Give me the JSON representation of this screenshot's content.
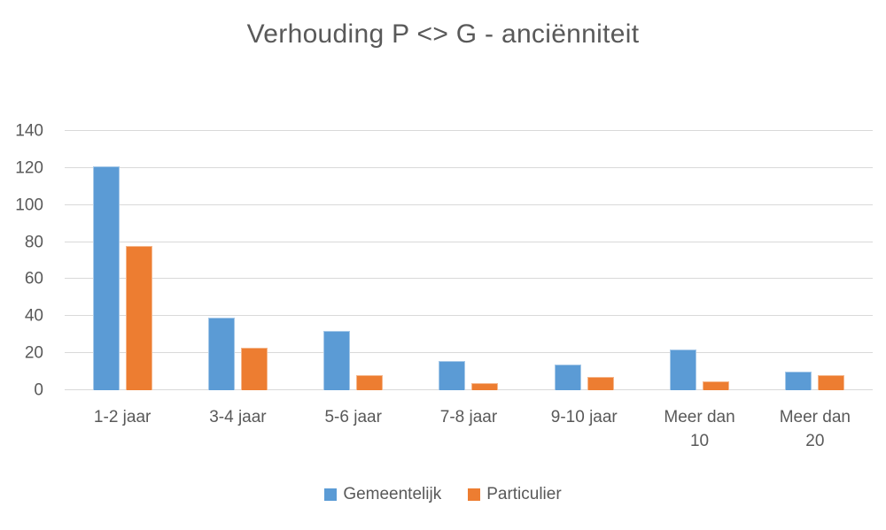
{
  "chart_data": {
    "type": "bar",
    "title": "Verhouding P <> G - anciënniteit",
    "categories": [
      "1-2 jaar",
      "3-4 jaar",
      "5-6 jaar",
      "7-8 jaar",
      "9-10 jaar",
      "Meer dan 10",
      "Meer dan 20"
    ],
    "series": [
      {
        "name": "Gemeentelijk",
        "color": "#5B9BD5",
        "values": [
          121,
          39,
          32,
          16,
          14,
          22,
          10
        ]
      },
      {
        "name": "Particulier",
        "color": "#ED7D31",
        "values": [
          78,
          23,
          8,
          4,
          7,
          5,
          8
        ]
      }
    ],
    "xlabel": "",
    "ylabel": "",
    "ylim": [
      0,
      140
    ],
    "ytick_step": 20,
    "yticks": [
      0,
      20,
      40,
      60,
      80,
      100,
      120,
      140
    ],
    "grid": true,
    "legend_position": "bottom",
    "text_color": "#595959",
    "gridline_color": "#D9D9D9",
    "background_color": "#FFFFFF"
  }
}
